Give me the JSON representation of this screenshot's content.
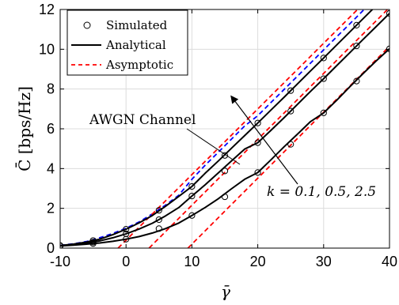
{
  "chart_data": {
    "type": "line",
    "xlabel": "γ̄",
    "ylabel": "C̄ [bps/Hz]",
    "xlim": [
      -10,
      40
    ],
    "ylim": [
      0,
      12
    ],
    "xticks": [
      -10,
      0,
      10,
      20,
      30,
      40
    ],
    "xtick_labels": [
      "-10",
      "0",
      "10",
      "20",
      "30",
      "40"
    ],
    "yticks": [
      0,
      2,
      4,
      6,
      8,
      10,
      12
    ],
    "ytick_labels": [
      "0",
      "2",
      "4",
      "6",
      "8",
      "10",
      "12"
    ],
    "grid": true,
    "legend": {
      "placement": "top-left",
      "entries": [
        {
          "label": "Simulated",
          "style": "marker-circle",
          "color": "#000000"
        },
        {
          "label": "Analytical",
          "style": "solid",
          "color": "#000000"
        },
        {
          "label": "Asymptotic",
          "style": "dashed",
          "color": "#ff0000"
        }
      ]
    },
    "annotations": [
      {
        "text": "AWGN Channel"
      },
      {
        "text": "k = 0.1, 0.5, 2.5"
      }
    ],
    "series": [
      {
        "kind": "awgn",
        "style": "dashed",
        "color": "#0000ff",
        "x": [
          -10,
          -8,
          -6,
          -4,
          -2,
          0,
          2,
          4,
          6,
          8,
          10,
          12,
          14,
          16,
          18,
          20,
          22,
          24,
          26,
          28,
          30,
          32,
          34,
          36,
          38,
          40
        ],
        "y": [
          0.14,
          0.22,
          0.33,
          0.52,
          0.74,
          1.0,
          1.32,
          1.72,
          2.16,
          2.66,
          3.46,
          4.16,
          4.82,
          5.48,
          6.14,
          6.66,
          7.32,
          7.98,
          8.64,
          9.3,
          9.97,
          10.63,
          11.29,
          11.95,
          12.6,
          13.25
        ]
      },
      {
        "kind": "analytical",
        "k": 2.5,
        "style": "solid",
        "color": "#000000",
        "x": [
          -10,
          -8,
          -6,
          -4,
          -2,
          0,
          2,
          4,
          6,
          8,
          10,
          12,
          14,
          16,
          18,
          20,
          22,
          24,
          26,
          28,
          30,
          32,
          34,
          36,
          38,
          40
        ],
        "y": [
          0.13,
          0.2,
          0.3,
          0.45,
          0.68,
          0.95,
          1.27,
          1.64,
          2.1,
          2.6,
          3.1,
          3.76,
          4.38,
          5.02,
          5.66,
          6.29,
          6.94,
          7.59,
          8.25,
          8.91,
          9.56,
          10.22,
          10.88,
          11.54,
          12.2,
          12.86
        ]
      },
      {
        "kind": "analytical",
        "k": 0.5,
        "style": "solid",
        "color": "#000000",
        "x": [
          -10,
          -8,
          -6,
          -4,
          -2,
          0,
          2,
          4,
          6,
          8,
          10,
          12,
          14,
          16,
          18,
          20,
          22,
          24,
          26,
          28,
          30,
          32,
          34,
          36,
          38,
          40
        ],
        "y": [
          0.12,
          0.18,
          0.26,
          0.36,
          0.52,
          0.72,
          0.96,
          1.25,
          1.62,
          2.04,
          2.62,
          3.18,
          3.78,
          4.38,
          4.98,
          5.3,
          5.92,
          6.56,
          7.22,
          7.88,
          8.52,
          9.18,
          9.84,
          10.5,
          11.15,
          11.8
        ]
      },
      {
        "kind": "analytical",
        "k": 0.1,
        "style": "solid",
        "color": "#000000",
        "x": [
          -10,
          -8,
          -6,
          -4,
          -2,
          0,
          2,
          4,
          6,
          8,
          10,
          12,
          14,
          16,
          18,
          20,
          22,
          24,
          26,
          28,
          30,
          32,
          34,
          36,
          38,
          40
        ],
        "y": [
          0.11,
          0.15,
          0.2,
          0.26,
          0.34,
          0.45,
          0.58,
          0.76,
          0.98,
          1.26,
          1.64,
          2.04,
          2.48,
          2.98,
          3.46,
          3.8,
          4.44,
          5.1,
          5.72,
          6.36,
          6.8,
          7.44,
          8.12,
          8.78,
          9.42,
          10.02
        ]
      },
      {
        "kind": "asymptotic",
        "k": 2.5,
        "style": "dashed",
        "color": "#ff0000",
        "x": [
          -1.2,
          40
        ],
        "y": [
          0,
          13.6
        ]
      },
      {
        "kind": "asymptotic",
        "k": 0.5,
        "style": "dashed",
        "color": "#ff0000",
        "x": [
          3.5,
          40
        ],
        "y": [
          0,
          12.1
        ]
      },
      {
        "kind": "asymptotic",
        "k": 0.1,
        "style": "dashed",
        "color": "#ff0000",
        "x": [
          9.4,
          40
        ],
        "y": [
          0,
          10.15
        ]
      },
      {
        "kind": "simulated",
        "k": 2.5,
        "marker": "circle",
        "color": "#000000",
        "x": [
          -10,
          -5,
          0,
          5,
          10,
          15,
          20,
          25,
          30,
          35,
          40
        ],
        "y": [
          0.13,
          0.38,
          0.95,
          1.9,
          3.1,
          4.66,
          6.29,
          7.92,
          9.56,
          11.21,
          12.86
        ]
      },
      {
        "kind": "simulated",
        "k": 0.5,
        "marker": "circle",
        "color": "#000000",
        "x": [
          -10,
          -5,
          0,
          5,
          10,
          15,
          20,
          25,
          30,
          35,
          40
        ],
        "y": [
          0.12,
          0.3,
          0.72,
          1.43,
          2.62,
          3.88,
          5.3,
          6.89,
          8.52,
          10.17,
          11.8
        ]
      },
      {
        "kind": "simulated",
        "k": 0.1,
        "marker": "circle",
        "color": "#000000",
        "x": [
          -10,
          -5,
          0,
          5,
          10,
          15,
          20,
          25,
          30,
          35,
          40
        ],
        "y": [
          0.11,
          0.23,
          0.45,
          0.98,
          1.64,
          2.58,
          3.8,
          5.22,
          6.8,
          8.4,
          10.02
        ]
      }
    ]
  }
}
